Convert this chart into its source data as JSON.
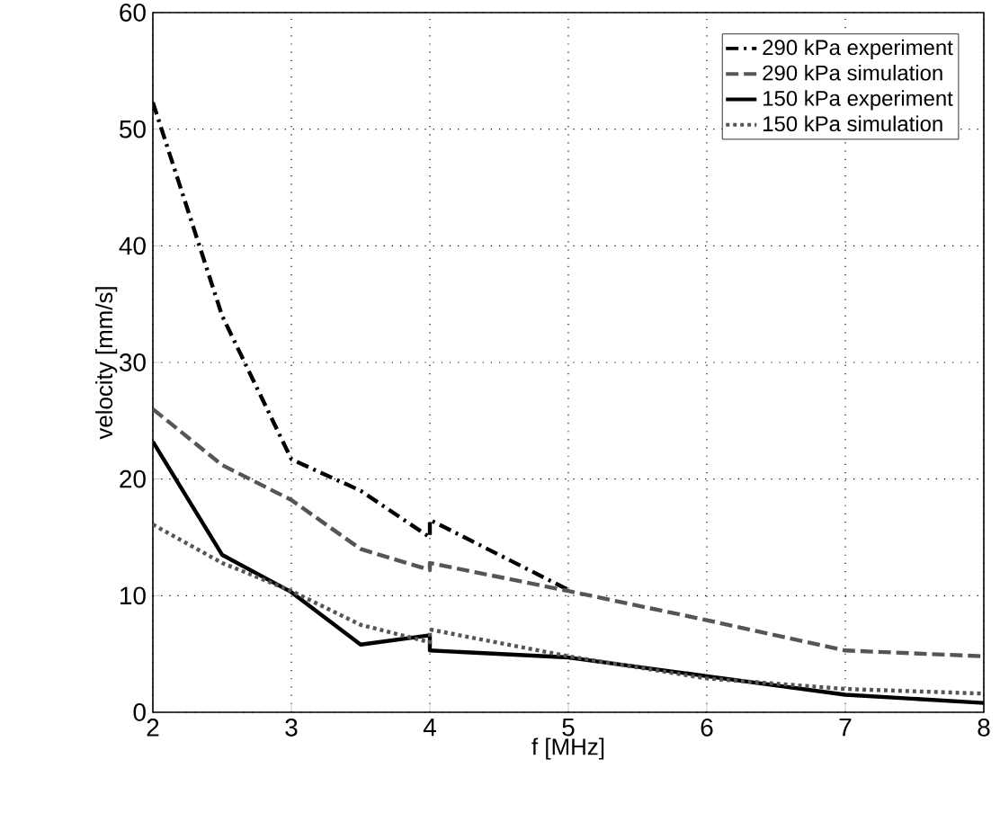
{
  "chart_data": {
    "type": "line",
    "xlabel": "f [MHz]",
    "ylabel": "velocity [mm/s]",
    "xlim": [
      2,
      8
    ],
    "ylim": [
      0,
      60
    ],
    "xticks": [
      2,
      3,
      4,
      5,
      6,
      7,
      8
    ],
    "yticks": [
      0,
      10,
      20,
      30,
      40,
      50,
      60
    ],
    "grid": true,
    "legend": "top right",
    "series": [
      {
        "name": "290 kPa experiment",
        "color": "#000000",
        "line_style": "dashdot",
        "x": [
          2,
          2.5,
          3,
          3.5,
          4,
          4,
          5
        ],
        "values": [
          52.3,
          34,
          21.7,
          19,
          15,
          16.5,
          10.5
        ]
      },
      {
        "name": "290 kPa simulation",
        "color": "#555555",
        "line_style": "dashed",
        "x": [
          2,
          2.5,
          3,
          3.5,
          4,
          4,
          5,
          6,
          7,
          8
        ],
        "values": [
          26,
          21.2,
          18.2,
          14,
          12.2,
          12.8,
          10.4,
          7.9,
          5.3,
          4.8
        ]
      },
      {
        "name": "150 kPa experiment",
        "color": "#000000",
        "line_style": "solid",
        "x": [
          2,
          2.5,
          3,
          3.5,
          4,
          4,
          5,
          6,
          7,
          8
        ],
        "values": [
          23.2,
          13.5,
          10.3,
          5.8,
          6.6,
          5.3,
          4.7,
          3.1,
          1.5,
          0.8
        ]
      },
      {
        "name": "150 kPa simulation",
        "color": "#555555",
        "line_style": "dotted",
        "x": [
          2,
          2.5,
          3,
          3.5,
          4,
          4,
          5,
          6,
          7,
          8
        ],
        "values": [
          16.1,
          12.8,
          10.4,
          7.5,
          6,
          7.1,
          4.8,
          2.9,
          2,
          1.6
        ]
      }
    ]
  }
}
